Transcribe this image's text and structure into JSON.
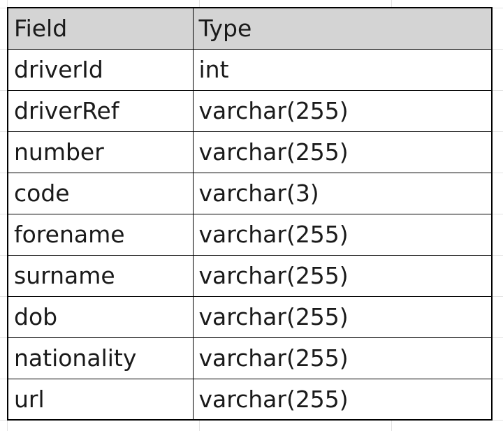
{
  "table": {
    "headers": {
      "field": "Field",
      "type": "Type"
    },
    "rows": [
      {
        "field": "driverId",
        "type": "int"
      },
      {
        "field": "driverRef",
        "type": "varchar(255)"
      },
      {
        "field": "number",
        "type": "varchar(255)"
      },
      {
        "field": "code",
        "type": "varchar(3)"
      },
      {
        "field": "forename",
        "type": "varchar(255)"
      },
      {
        "field": "surname",
        "type": "varchar(255)"
      },
      {
        "field": "dob",
        "type": "varchar(255)"
      },
      {
        "field": "nationality",
        "type": "varchar(255)"
      },
      {
        "field": "url",
        "type": "varchar(255)"
      }
    ]
  },
  "colors": {
    "header_background": "#d4d4d4",
    "border": "#000000",
    "gridline": "#e3e3e3"
  }
}
